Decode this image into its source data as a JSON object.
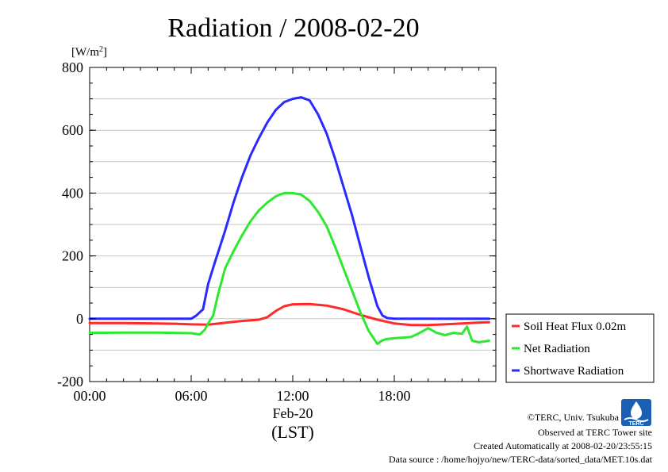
{
  "chart_data": {
    "type": "line",
    "title": "Radiation / 2008-02-20",
    "ylabel_prefix": "[W/m",
    "ylabel_sup": "2",
    "ylabel_suffix": "]",
    "xlabel_date": "Feb-20",
    "xlabel_unit": "(LST)",
    "x_unit": "hour",
    "xlim": [
      0,
      24
    ],
    "ylim": [
      -200,
      800
    ],
    "y_ticks": [
      -200,
      0,
      200,
      400,
      600,
      800
    ],
    "y_tick_labels": [
      "-200",
      "0",
      "200",
      "400",
      "600",
      "800"
    ],
    "x_ticks": [
      0,
      6,
      12,
      18
    ],
    "x_tick_labels": [
      "00:00",
      "06:00",
      "12:00",
      "18:00"
    ],
    "grid": true,
    "legend_position": "right",
    "series": [
      {
        "name": "Soil Heat Flux 0.02m",
        "color": "#ff2a2a",
        "x": [
          0,
          2,
          4,
          5,
          6,
          7,
          8,
          9,
          10,
          10.5,
          11,
          11.5,
          12,
          13,
          14,
          15,
          16,
          17,
          18,
          19,
          20,
          21,
          22,
          23,
          23.6
        ],
        "y": [
          -14,
          -14,
          -15,
          -16,
          -18,
          -19,
          -13,
          -7,
          -3,
          5,
          25,
          40,
          46,
          47,
          42,
          30,
          12,
          -3,
          -15,
          -20,
          -20,
          -18,
          -15,
          -12,
          -11
        ]
      },
      {
        "name": "Net Radiation",
        "color": "#2ee82e",
        "x": [
          0,
          2,
          4,
          6,
          6.5,
          6.8,
          7,
          7.3,
          7.6,
          8,
          8.5,
          9,
          9.5,
          10,
          10.5,
          11,
          11.5,
          12,
          12.5,
          13,
          13.5,
          14,
          14.5,
          15,
          15.5,
          16,
          16.5,
          17,
          17.2,
          17.5,
          18,
          18.5,
          19,
          19.5,
          20,
          20.5,
          21,
          21.5,
          22,
          22.3,
          22.6,
          23,
          23.6
        ],
        "y": [
          -45,
          -44,
          -44,
          -46,
          -50,
          -35,
          -15,
          10,
          80,
          160,
          215,
          265,
          310,
          345,
          370,
          390,
          400,
          400,
          395,
          375,
          340,
          295,
          230,
          160,
          90,
          20,
          -40,
          -80,
          -72,
          -65,
          -62,
          -60,
          -58,
          -45,
          -30,
          -45,
          -52,
          -45,
          -48,
          -25,
          -70,
          -75,
          -70
        ]
      },
      {
        "name": "Shortwave Radiation",
        "color": "#2a2aff",
        "x": [
          0,
          2,
          4,
          6,
          6.3,
          6.7,
          7,
          7.4,
          8,
          8.5,
          9,
          9.5,
          10,
          10.5,
          11,
          11.5,
          12,
          12.5,
          13,
          13.5,
          14,
          14.5,
          15,
          15.5,
          16,
          16.5,
          17,
          17.3,
          17.6,
          18,
          20,
          22,
          23.6
        ],
        "y": [
          0,
          0,
          0,
          0,
          10,
          30,
          110,
          180,
          280,
          370,
          450,
          520,
          575,
          625,
          665,
          690,
          700,
          705,
          695,
          650,
          590,
          510,
          420,
          330,
          230,
          130,
          40,
          10,
          2,
          0,
          0,
          0,
          0
        ]
      }
    ]
  },
  "footer": {
    "copyright": "©TERC, Univ. Tsukuba",
    "observed": "Observed at TERC Tower site",
    "created": "Created Automatically at 2008-02-20/23:55:15",
    "source": "Data source : /home/hojyo/new/TERC-data/sorted_data/MET.10s.dat",
    "logo_text": "TERC"
  }
}
